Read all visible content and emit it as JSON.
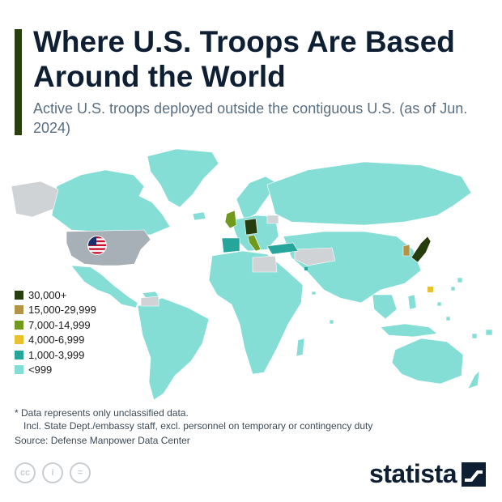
{
  "header": {
    "title": "Where U.S. Troops Are Based Around the World",
    "subtitle": "Active U.S. troops deployed outside the contiguous U.S. (as of Jun. 2024)"
  },
  "legend": [
    {
      "label": "30,000+",
      "color": "#263d0d"
    },
    {
      "label": "15,000-29,999",
      "color": "#b39445"
    },
    {
      "label": "7,000-14,999",
      "color": "#6f9a1c"
    },
    {
      "label": "4,000-6,999",
      "color": "#e9c02f"
    },
    {
      "label": "1,000-3,999",
      "color": "#26a59a"
    },
    {
      "label": "<999",
      "color": "#85ded5"
    }
  ],
  "map_colors": {
    "base": "#85ded5",
    "no_data": "#cfd3d6",
    "us": "#a7b0b6"
  },
  "highlighted_countries": [
    {
      "name": "Germany",
      "tier": "30,000+"
    },
    {
      "name": "Japan",
      "tier": "30,000+"
    },
    {
      "name": "South Korea",
      "tier": "15,000-29,999"
    },
    {
      "name": "Italy",
      "tier": "7,000-14,999"
    },
    {
      "name": "United Kingdom",
      "tier": "7,000-14,999"
    },
    {
      "name": "Guam",
      "tier": "4,000-6,999"
    },
    {
      "name": "Spain",
      "tier": "1,000-3,999"
    },
    {
      "name": "Turkey",
      "tier": "1,000-3,999"
    },
    {
      "name": "Bahrain",
      "tier": "1,000-3,999"
    }
  ],
  "footnote": {
    "line1": "* Data represents only unclassified data.",
    "line2": "Incl. State Dept./embassy staff, excl. personnel on temporary or contingency duty"
  },
  "source": "Source: Defense Manpower Data Center",
  "license_icons": [
    "cc-icon",
    "attribution-icon",
    "no-derivatives-icon"
  ],
  "license_glyphs": [
    "cc",
    "i",
    "="
  ],
  "brand": "statista"
}
